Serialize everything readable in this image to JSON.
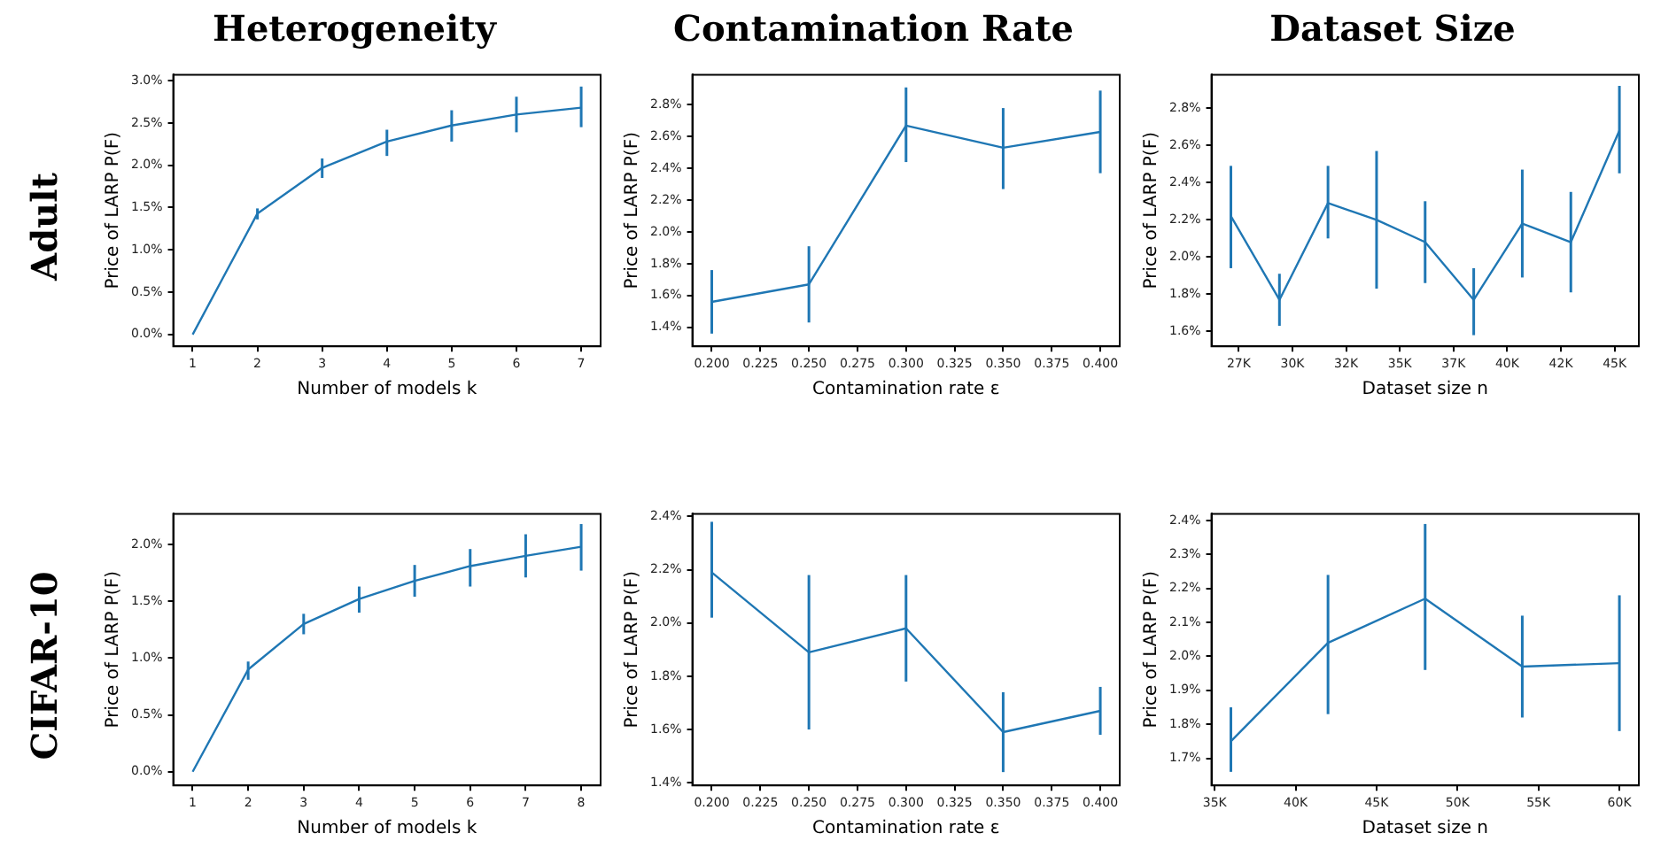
{
  "chart_data": [
    {
      "type": "line",
      "title": "Heterogeneity",
      "annotations": [
        "Adult"
      ],
      "xlabel": "Number of models k",
      "ylabel": "Price of LARP P(F)",
      "color": "#1f77b4",
      "x": [
        1,
        2,
        3,
        4,
        5,
        6,
        7
      ],
      "values": [
        0,
        1.43,
        1.97,
        2.28,
        2.47,
        2.6,
        2.68
      ],
      "errors": [
        null,
        [
          1.36,
          1.49
        ],
        [
          1.85,
          2.08
        ],
        [
          2.11,
          2.42
        ],
        [
          2.28,
          2.65
        ],
        [
          2.39,
          2.81
        ],
        [
          2.45,
          2.93
        ]
      ],
      "xlim": [
        0.7,
        7.3
      ],
      "xticks": [
        1,
        2,
        3,
        4,
        5,
        6,
        7
      ],
      "ylim": [
        -0.14,
        3.07
      ],
      "yticks": [
        {
          "value": 0,
          "label": "0.0%"
        },
        {
          "value": 0.5,
          "label": "0.5%"
        },
        {
          "value": 1,
          "label": "1.0%"
        },
        {
          "value": 1.5,
          "label": "1.5%"
        },
        {
          "value": 2,
          "label": "2.0%"
        },
        {
          "value": 2.5,
          "label": "2.5%"
        },
        {
          "value": 3,
          "label": "3.0%"
        }
      ]
    },
    {
      "type": "line",
      "title": "Contamination Rate",
      "xlabel": "Contamination rate ε",
      "ylabel": "Price of LARP P(F)",
      "color": "#1f77b4",
      "x": [
        0.2,
        0.25,
        0.3,
        0.35,
        0.4
      ],
      "values": [
        1.56,
        1.67,
        2.67,
        2.53,
        2.63
      ],
      "errors": [
        [
          1.36,
          1.76
        ],
        [
          1.43,
          1.91
        ],
        [
          2.44,
          2.91
        ],
        [
          2.27,
          2.78
        ],
        [
          2.37,
          2.89
        ]
      ],
      "xlim": [
        0.19,
        0.41
      ],
      "xticks": [
        {
          "value": 0.2,
          "label": "0.200"
        },
        {
          "value": 0.225,
          "label": "0.225"
        },
        {
          "value": 0.25,
          "label": "0.250"
        },
        {
          "value": 0.275,
          "label": "0.275"
        },
        {
          "value": 0.3,
          "label": "0.300"
        },
        {
          "value": 0.325,
          "label": "0.325"
        },
        {
          "value": 0.35,
          "label": "0.350"
        },
        {
          "value": 0.375,
          "label": "0.375"
        },
        {
          "value": 0.4,
          "label": "0.400"
        }
      ],
      "ylim": [
        1.28,
        2.99
      ],
      "yticks": [
        {
          "value": 1.4,
          "label": "1.4%"
        },
        {
          "value": 1.6,
          "label": "1.6%"
        },
        {
          "value": 1.8,
          "label": "1.8%"
        },
        {
          "value": 2.0,
          "label": "2.0%"
        },
        {
          "value": 2.2,
          "label": "2.2%"
        },
        {
          "value": 2.4,
          "label": "2.4%"
        },
        {
          "value": 2.6,
          "label": "2.6%"
        },
        {
          "value": 2.8,
          "label": "2.8%"
        }
      ]
    },
    {
      "type": "line",
      "title": "Dataset Size",
      "xlabel": "Dataset size n",
      "ylabel": "Price of LARP P(F)",
      "color": "#1f77b4",
      "x": [
        27133,
        29394,
        31655,
        33916,
        36177,
        38439,
        40700,
        42961,
        45222
      ],
      "values": [
        2.22,
        1.77,
        2.29,
        2.2,
        2.08,
        1.77,
        2.18,
        2.08,
        2.68
      ],
      "errors": [
        [
          1.94,
          2.49
        ],
        [
          1.63,
          1.91
        ],
        [
          2.1,
          2.49
        ],
        [
          1.83,
          2.57
        ],
        [
          1.86,
          2.3
        ],
        [
          1.58,
          1.94
        ],
        [
          1.89,
          2.47
        ],
        [
          1.81,
          2.35
        ],
        [
          2.45,
          2.92
        ]
      ],
      "xlim": [
        26229,
        46126
      ],
      "xticks": [
        {
          "value": 27500,
          "label": "27K"
        },
        {
          "value": 30000,
          "label": "30K"
        },
        {
          "value": 32500,
          "label": "32K"
        },
        {
          "value": 35000,
          "label": "35K"
        },
        {
          "value": 37500,
          "label": "37K"
        },
        {
          "value": 40000,
          "label": "40K"
        },
        {
          "value": 42500,
          "label": "42K"
        },
        {
          "value": 45000,
          "label": "45K"
        }
      ],
      "ylim": [
        1.52,
        2.98
      ],
      "yticks": [
        {
          "value": 1.6,
          "label": "1.6%"
        },
        {
          "value": 1.8,
          "label": "1.8%"
        },
        {
          "value": 2.0,
          "label": "2.0%"
        },
        {
          "value": 2.2,
          "label": "2.2%"
        },
        {
          "value": 2.4,
          "label": "2.4%"
        },
        {
          "value": 2.6,
          "label": "2.6%"
        },
        {
          "value": 2.8,
          "label": "2.8%"
        }
      ]
    },
    {
      "type": "line",
      "annotations": [
        "CIFAR-10"
      ],
      "xlabel": "Number of models k",
      "ylabel": "Price of LARP P(F)",
      "color": "#1f77b4",
      "x": [
        1,
        2,
        3,
        4,
        5,
        6,
        7,
        8
      ],
      "values": [
        0,
        0.9,
        1.3,
        1.52,
        1.68,
        1.81,
        1.9,
        1.98
      ],
      "errors": [
        null,
        [
          0.81,
          0.97
        ],
        [
          1.21,
          1.39
        ],
        [
          1.4,
          1.63
        ],
        [
          1.54,
          1.82
        ],
        [
          1.63,
          1.96
        ],
        [
          1.71,
          2.09
        ],
        [
          1.77,
          2.18
        ]
      ],
      "xlim": [
        0.65,
        8.35
      ],
      "xticks": [
        1,
        2,
        3,
        4,
        5,
        6,
        7,
        8
      ],
      "ylim": [
        -0.12,
        2.27
      ],
      "yticks": [
        {
          "value": 0,
          "label": "0.0%"
        },
        {
          "value": 0.5,
          "label": "0.5%"
        },
        {
          "value": 1,
          "label": "1.0%"
        },
        {
          "value": 1.5,
          "label": "1.5%"
        },
        {
          "value": 2,
          "label": "2.0%"
        }
      ]
    },
    {
      "type": "line",
      "xlabel": "Contamination rate ε",
      "ylabel": "Price of LARP P(F)",
      "color": "#1f77b4",
      "x": [
        0.2,
        0.25,
        0.3,
        0.35,
        0.4
      ],
      "values": [
        2.19,
        1.89,
        1.98,
        1.59,
        1.67
      ],
      "errors": [
        [
          2.02,
          2.38
        ],
        [
          1.6,
          2.18
        ],
        [
          1.78,
          2.18
        ],
        [
          1.44,
          1.74
        ],
        [
          1.58,
          1.76
        ]
      ],
      "xlim": [
        0.19,
        0.41
      ],
      "xticks": [
        {
          "value": 0.2,
          "label": "0.200"
        },
        {
          "value": 0.225,
          "label": "0.225"
        },
        {
          "value": 0.25,
          "label": "0.250"
        },
        {
          "value": 0.275,
          "label": "0.275"
        },
        {
          "value": 0.3,
          "label": "0.300"
        },
        {
          "value": 0.325,
          "label": "0.325"
        },
        {
          "value": 0.35,
          "label": "0.350"
        },
        {
          "value": 0.375,
          "label": "0.375"
        },
        {
          "value": 0.4,
          "label": "0.400"
        }
      ],
      "ylim": [
        1.39,
        2.41
      ],
      "yticks": [
        {
          "value": 1.4,
          "label": "1.4%"
        },
        {
          "value": 1.6,
          "label": "1.6%"
        },
        {
          "value": 1.8,
          "label": "1.8%"
        },
        {
          "value": 2.0,
          "label": "2.0%"
        },
        {
          "value": 2.2,
          "label": "2.2%"
        },
        {
          "value": 2.4,
          "label": "2.4%"
        }
      ]
    },
    {
      "type": "line",
      "xlabel": "Dataset size n",
      "ylabel": "Price of LARP P(F)",
      "color": "#1f77b4",
      "x": [
        36000,
        42000,
        48000,
        54000,
        60000
      ],
      "values": [
        1.75,
        2.04,
        2.17,
        1.97,
        1.98
      ],
      "errors": [
        [
          1.66,
          1.85
        ],
        [
          1.83,
          2.24
        ],
        [
          1.96,
          2.39
        ],
        [
          1.82,
          2.12
        ],
        [
          1.78,
          2.18
        ]
      ],
      "xlim": [
        34800,
        61200
      ],
      "xticks": [
        {
          "value": 35000,
          "label": "35K"
        },
        {
          "value": 40000,
          "label": "40K"
        },
        {
          "value": 45000,
          "label": "45K"
        },
        {
          "value": 50000,
          "label": "50K"
        },
        {
          "value": 55000,
          "label": "55K"
        },
        {
          "value": 60000,
          "label": "60K"
        }
      ],
      "ylim": [
        1.62,
        2.42
      ],
      "yticks": [
        {
          "value": 1.7,
          "label": "1.7%"
        },
        {
          "value": 1.8,
          "label": "1.8%"
        },
        {
          "value": 1.9,
          "label": "1.9%"
        },
        {
          "value": 2.0,
          "label": "2.0%"
        },
        {
          "value": 2.1,
          "label": "2.1%"
        },
        {
          "value": 2.2,
          "label": "2.2%"
        },
        {
          "value": 2.3,
          "label": "2.3%"
        },
        {
          "value": 2.4,
          "label": "2.4%"
        }
      ]
    }
  ]
}
